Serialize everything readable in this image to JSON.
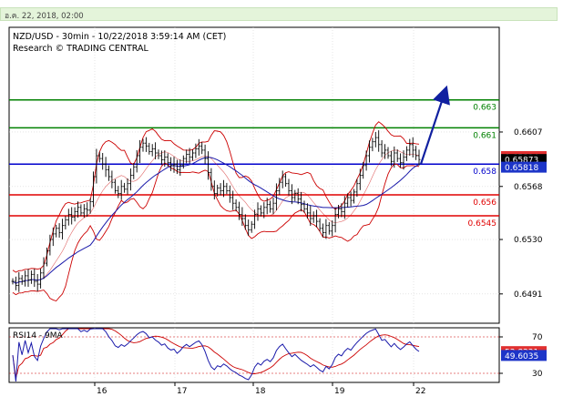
{
  "header": {
    "date_text": "อ.ค. 22, 2018, 02:00"
  },
  "chart_data": {
    "type": "line",
    "title": "NZD/USD - 30min - 10/22/2018 3:59:14 AM (CET)",
    "subtitle": "Research © TRADING CENTRAL",
    "price_axis": {
      "ylim": [
        0.647,
        0.6682
      ],
      "ticks": [
        "0.6607",
        "0.6568",
        "0.6530",
        "0.6491"
      ]
    },
    "x_ticks": [
      "16",
      "17",
      "18",
      "19",
      "22"
    ],
    "levels": [
      {
        "label": "0.663",
        "value": 0.663,
        "color": "#008000"
      },
      {
        "label": "0.661",
        "value": 0.661,
        "color": "#008000"
      },
      {
        "label": "0.658",
        "value": 0.6584,
        "color": "#0000cc"
      },
      {
        "label": "0.656",
        "value": 0.6562,
        "color": "#e00000"
      },
      {
        "label": "0.6545",
        "value": 0.6547,
        "color": "#e00000"
      }
    ],
    "price_tags": [
      {
        "label": "0.65894",
        "value": 0.65894,
        "bg": "#e03030",
        "fg": "#ffffff"
      },
      {
        "label": "0.65873",
        "value": 0.65873,
        "bg": "#000000",
        "fg": "#ffffff"
      },
      {
        "label": "0.65818",
        "value": 0.65818,
        "bg": "#1d35c8",
        "fg": "#ffffff"
      }
    ],
    "price_series": [
      0.65,
      0.6497,
      0.6502,
      0.65,
      0.6504,
      0.6501,
      0.6505,
      0.65,
      0.6498,
      0.6506,
      0.6513,
      0.6522,
      0.653,
      0.6534,
      0.6538,
      0.6535,
      0.654,
      0.6544,
      0.6548,
      0.6546,
      0.655,
      0.6553,
      0.6549,
      0.6552,
      0.6551,
      0.6557,
      0.6575,
      0.659,
      0.6588,
      0.6584,
      0.658,
      0.6575,
      0.6571,
      0.6565,
      0.6563,
      0.6568,
      0.6566,
      0.657,
      0.6576,
      0.6582,
      0.659,
      0.6596,
      0.6599,
      0.6597,
      0.6593,
      0.6595,
      0.6592,
      0.659,
      0.6587,
      0.6589,
      0.6585,
      0.6583,
      0.6584,
      0.658,
      0.6583,
      0.6588,
      0.6591,
      0.6589,
      0.6592,
      0.6595,
      0.6597,
      0.6594,
      0.6588,
      0.6578,
      0.6568,
      0.6563,
      0.6567,
      0.6565,
      0.6568,
      0.6565,
      0.656,
      0.6556,
      0.6553,
      0.6548,
      0.6545,
      0.654,
      0.6537,
      0.6541,
      0.6548,
      0.6552,
      0.6549,
      0.6553,
      0.6555,
      0.6552,
      0.6556,
      0.6565,
      0.6571,
      0.6575,
      0.657,
      0.6565,
      0.656,
      0.6563,
      0.6559,
      0.6555,
      0.6552,
      0.6549,
      0.6545,
      0.6547,
      0.6543,
      0.6538,
      0.6535,
      0.654,
      0.6536,
      0.654,
      0.6548,
      0.6552,
      0.655,
      0.6556,
      0.656,
      0.6558,
      0.6564,
      0.657,
      0.6576,
      0.6583,
      0.659,
      0.6596,
      0.66,
      0.6603,
      0.6598,
      0.6592,
      0.6594,
      0.659,
      0.6586,
      0.6592,
      0.6588,
      0.6585,
      0.6589,
      0.6594,
      0.6598,
      0.6594,
      0.659,
      0.65873
    ],
    "forecast_arrow": {
      "from_value": 0.6584,
      "to_value": 0.6635
    },
    "rsi": {
      "label": "RSI14 - 9MA",
      "ylim": [
        20,
        80
      ],
      "ticks": [
        "70",
        "30"
      ],
      "levels": [
        70,
        30
      ],
      "tags": [
        {
          "label": "53.8331",
          "value": 53.8331,
          "bg": "#e03030",
          "fg": "#ffffff"
        },
        {
          "label": "49.6035",
          "value": 49.6035,
          "bg": "#1d35c8",
          "fg": "#ffffff"
        }
      ]
    }
  }
}
